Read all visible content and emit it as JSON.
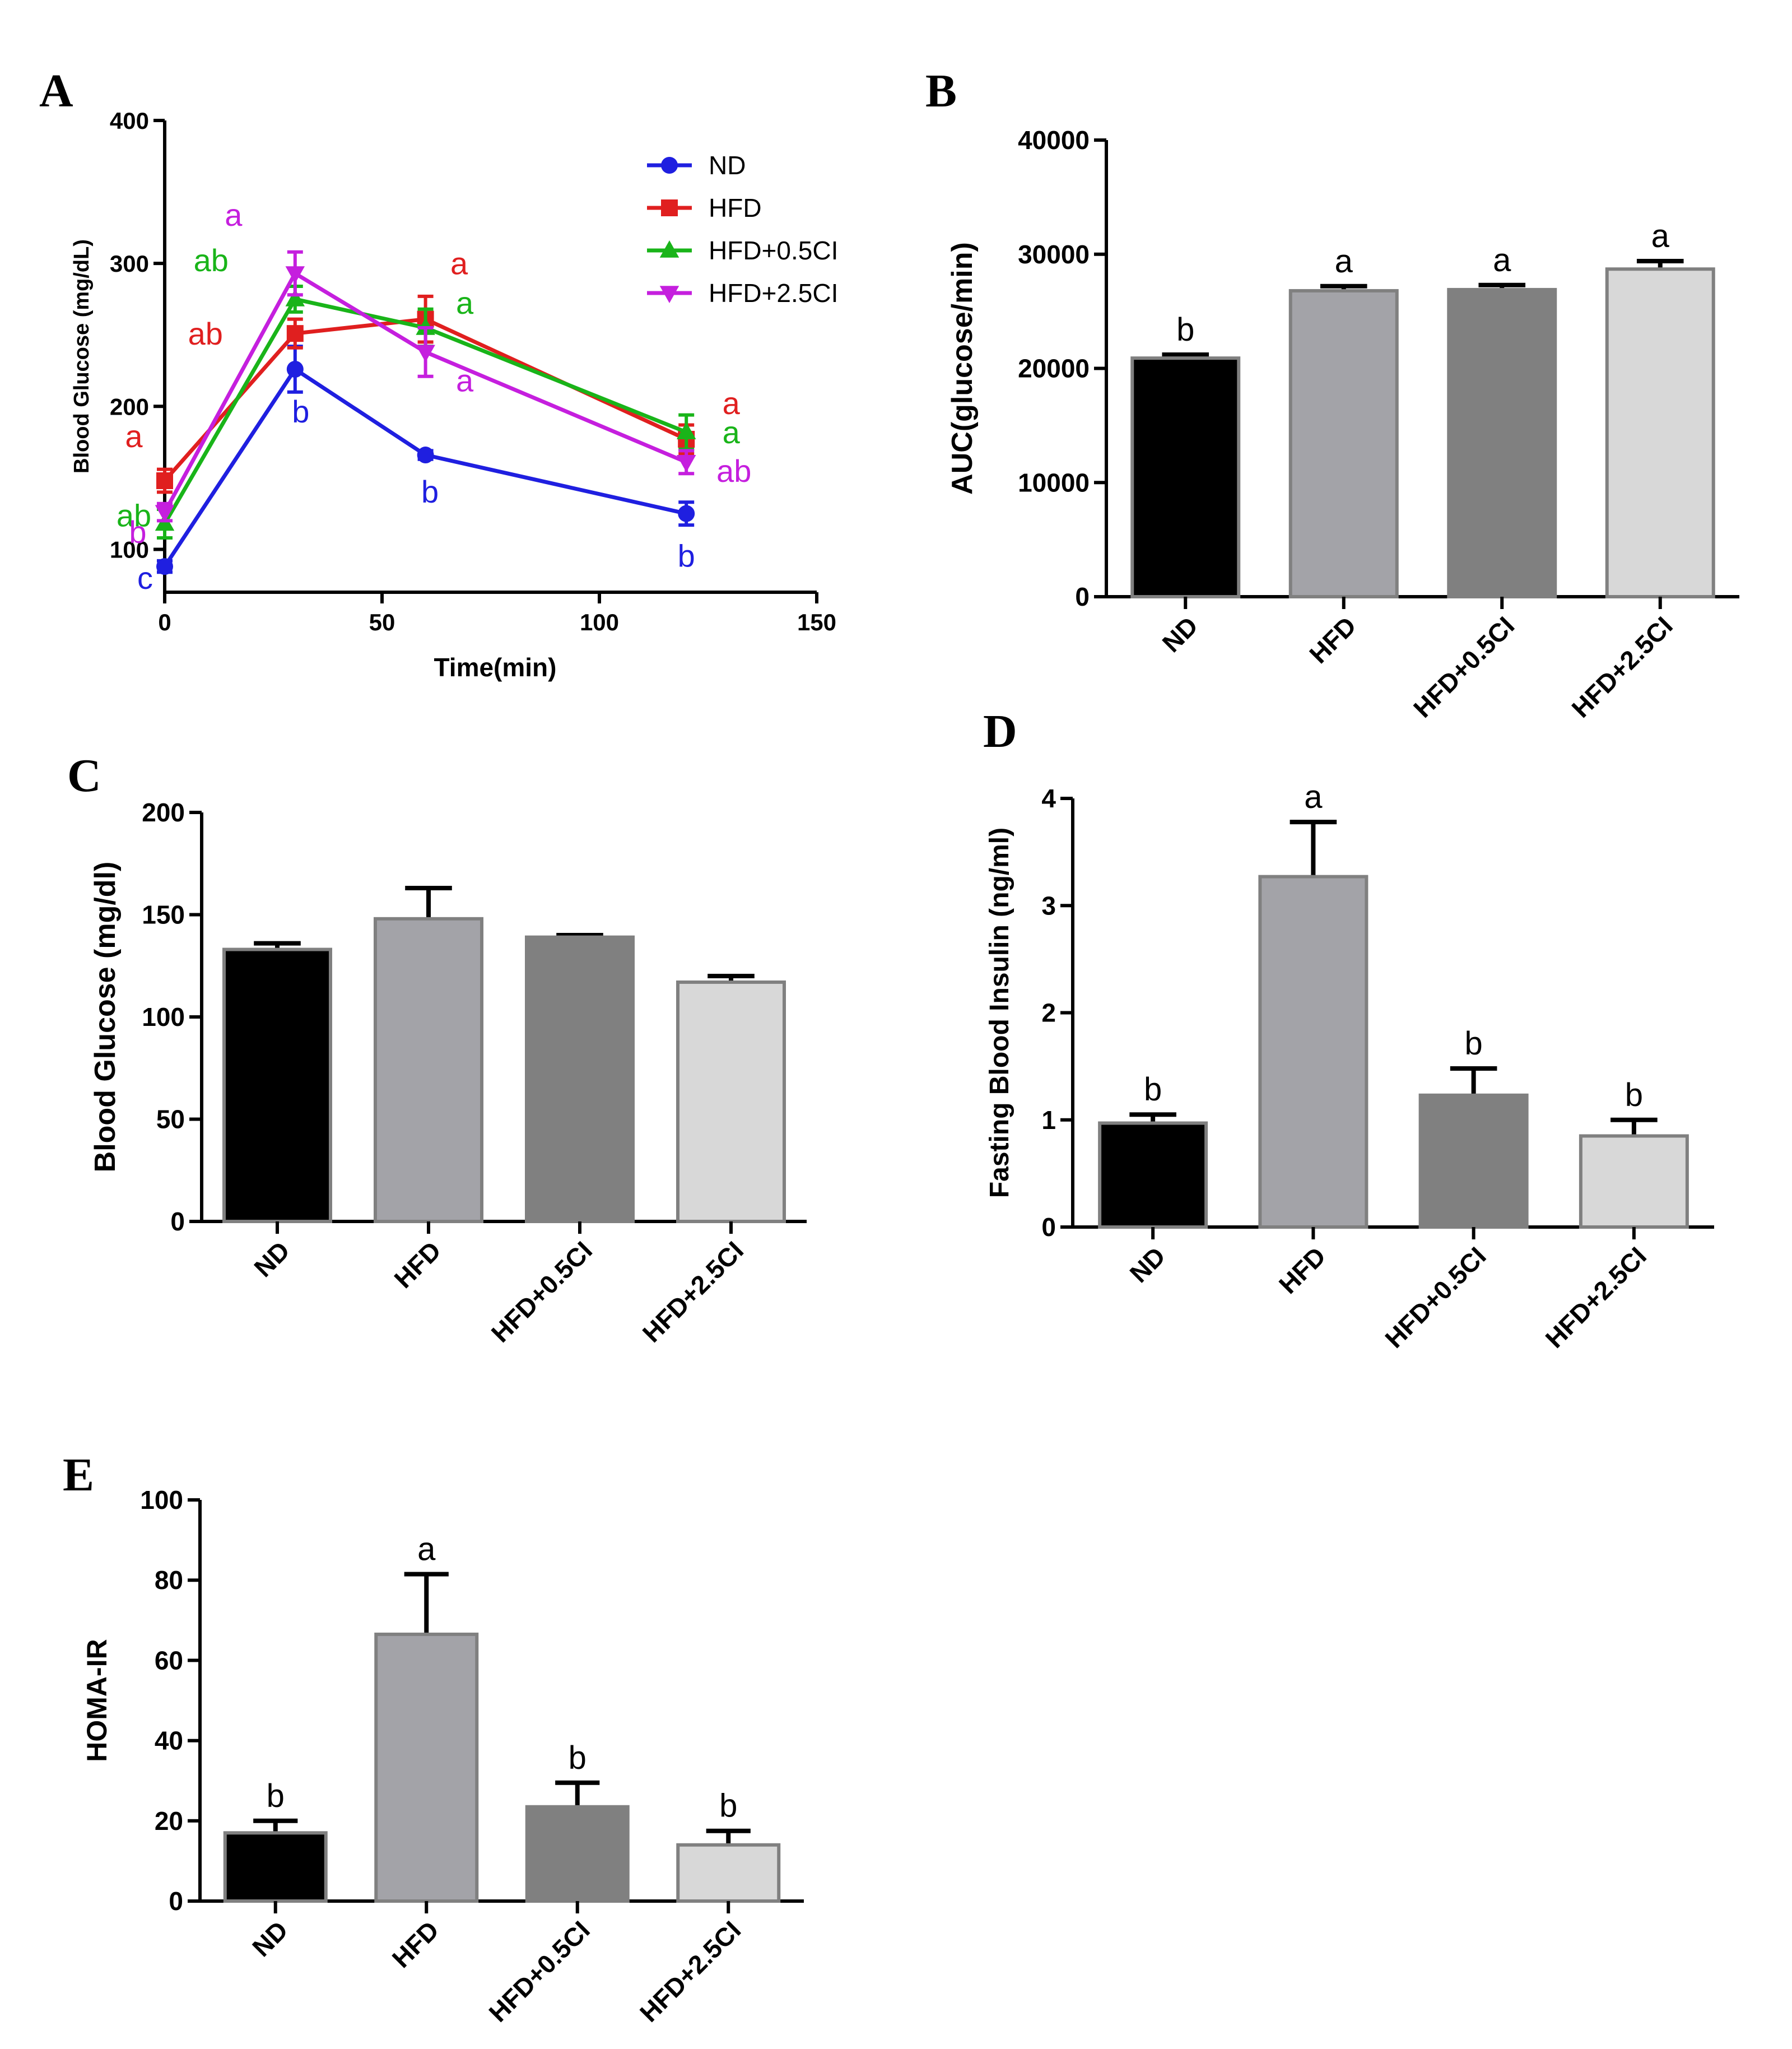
{
  "chart_data": [
    {
      "panel": "A",
      "type": "line",
      "title": "",
      "xlabel": "Time(min)",
      "ylabel": "Blood Glucose (mg/dL)",
      "xlim": [
        0,
        150
      ],
      "ylim": [
        70,
        400
      ],
      "xticks": [
        0,
        50,
        100,
        150
      ],
      "yticks": [
        100,
        200,
        300,
        400
      ],
      "x": [
        0,
        30,
        60,
        120
      ],
      "legend_position": "top-right",
      "series": [
        {
          "name": "ND",
          "color": "#1f1fe0",
          "marker": "circle",
          "values": [
            88,
            226,
            166,
            125
          ],
          "errors": [
            4,
            16,
            3,
            8
          ],
          "letters": [
            "c",
            "b",
            "b",
            "b"
          ]
        },
        {
          "name": "HFD",
          "color": "#e01f1f",
          "marker": "square",
          "values": [
            148,
            251,
            261,
            177
          ],
          "errors": [
            8,
            10,
            16,
            10
          ],
          "letters": [
            "a",
            "ab",
            "a",
            "a"
          ]
        },
        {
          "name": "HFD+0.5CI",
          "color": "#19b419",
          "marker": "triangle-up",
          "values": [
            118,
            275,
            255,
            182
          ],
          "errors": [
            10,
            9,
            13,
            12
          ],
          "letters": [
            "ab",
            "ab",
            "a",
            "a"
          ]
        },
        {
          "name": "HFD+2.5CI",
          "color": "#c51fde",
          "marker": "triangle-down",
          "values": [
            126,
            293,
            238,
            161
          ],
          "errors": [
            6,
            15,
            17,
            8
          ],
          "letters": [
            "b",
            "a",
            "a",
            "ab"
          ]
        }
      ]
    },
    {
      "panel": "B",
      "type": "bar",
      "title": "",
      "xlabel": "",
      "ylabel": "AUC(glucose/min)",
      "ylim": [
        0,
        40000
      ],
      "yticks": [
        0,
        10000,
        20000,
        30000,
        40000
      ],
      "categories": [
        "ND",
        "HFD",
        "HFD+0.5CI",
        "HFD+2.5CI"
      ],
      "values": [
        20900,
        26800,
        26900,
        28700
      ],
      "errors": [
        300,
        400,
        400,
        700
      ],
      "letters": [
        "b",
        "a",
        "a",
        "a"
      ],
      "bar_colors": [
        "#000000",
        "#a3a3a8",
        "#808080",
        "#d8d8d8"
      ]
    },
    {
      "panel": "C",
      "type": "bar",
      "title": "",
      "xlabel": "",
      "ylabel": "Blood Glucose (mg/dl)",
      "ylim": [
        0,
        200
      ],
      "yticks": [
        0,
        50,
        100,
        150,
        200
      ],
      "categories": [
        "ND",
        "HFD",
        "HFD+0.5CI",
        "HFD+2.5CI"
      ],
      "values": [
        133,
        148,
        139,
        117
      ],
      "errors": [
        3,
        15,
        1,
        3
      ],
      "letters": [
        "",
        "",
        "",
        ""
      ],
      "bar_colors": [
        "#000000",
        "#a3a3a8",
        "#808080",
        "#d8d8d8"
      ]
    },
    {
      "panel": "D",
      "type": "bar",
      "title": "",
      "xlabel": "",
      "ylabel": "Fasting Blood Insulin (ng/ml)",
      "ylim": [
        0,
        4
      ],
      "yticks": [
        0,
        1,
        2,
        3,
        4
      ],
      "categories": [
        "ND",
        "HFD",
        "HFD+0.5CI",
        "HFD+2.5CI"
      ],
      "values": [
        0.97,
        3.27,
        1.23,
        0.85
      ],
      "errors": [
        0.08,
        0.51,
        0.25,
        0.15
      ],
      "letters": [
        "b",
        "a",
        "b",
        "b"
      ],
      "bar_colors": [
        "#000000",
        "#a3a3a8",
        "#808080",
        "#d8d8d8"
      ]
    },
    {
      "panel": "E",
      "type": "bar",
      "title": "",
      "xlabel": "",
      "ylabel": "HOMA-IR",
      "ylim": [
        0,
        100
      ],
      "yticks": [
        0,
        20,
        40,
        60,
        80,
        100
      ],
      "categories": [
        "ND",
        "HFD",
        "HFD+0.5CI",
        "HFD+2.5CI"
      ],
      "values": [
        17,
        66.5,
        23.5,
        14
      ],
      "errors": [
        3,
        15,
        6,
        3.5
      ],
      "letters": [
        "b",
        "a",
        "b",
        "b"
      ],
      "bar_colors": [
        "#000000",
        "#a3a3a8",
        "#808080",
        "#d8d8d8"
      ]
    }
  ]
}
